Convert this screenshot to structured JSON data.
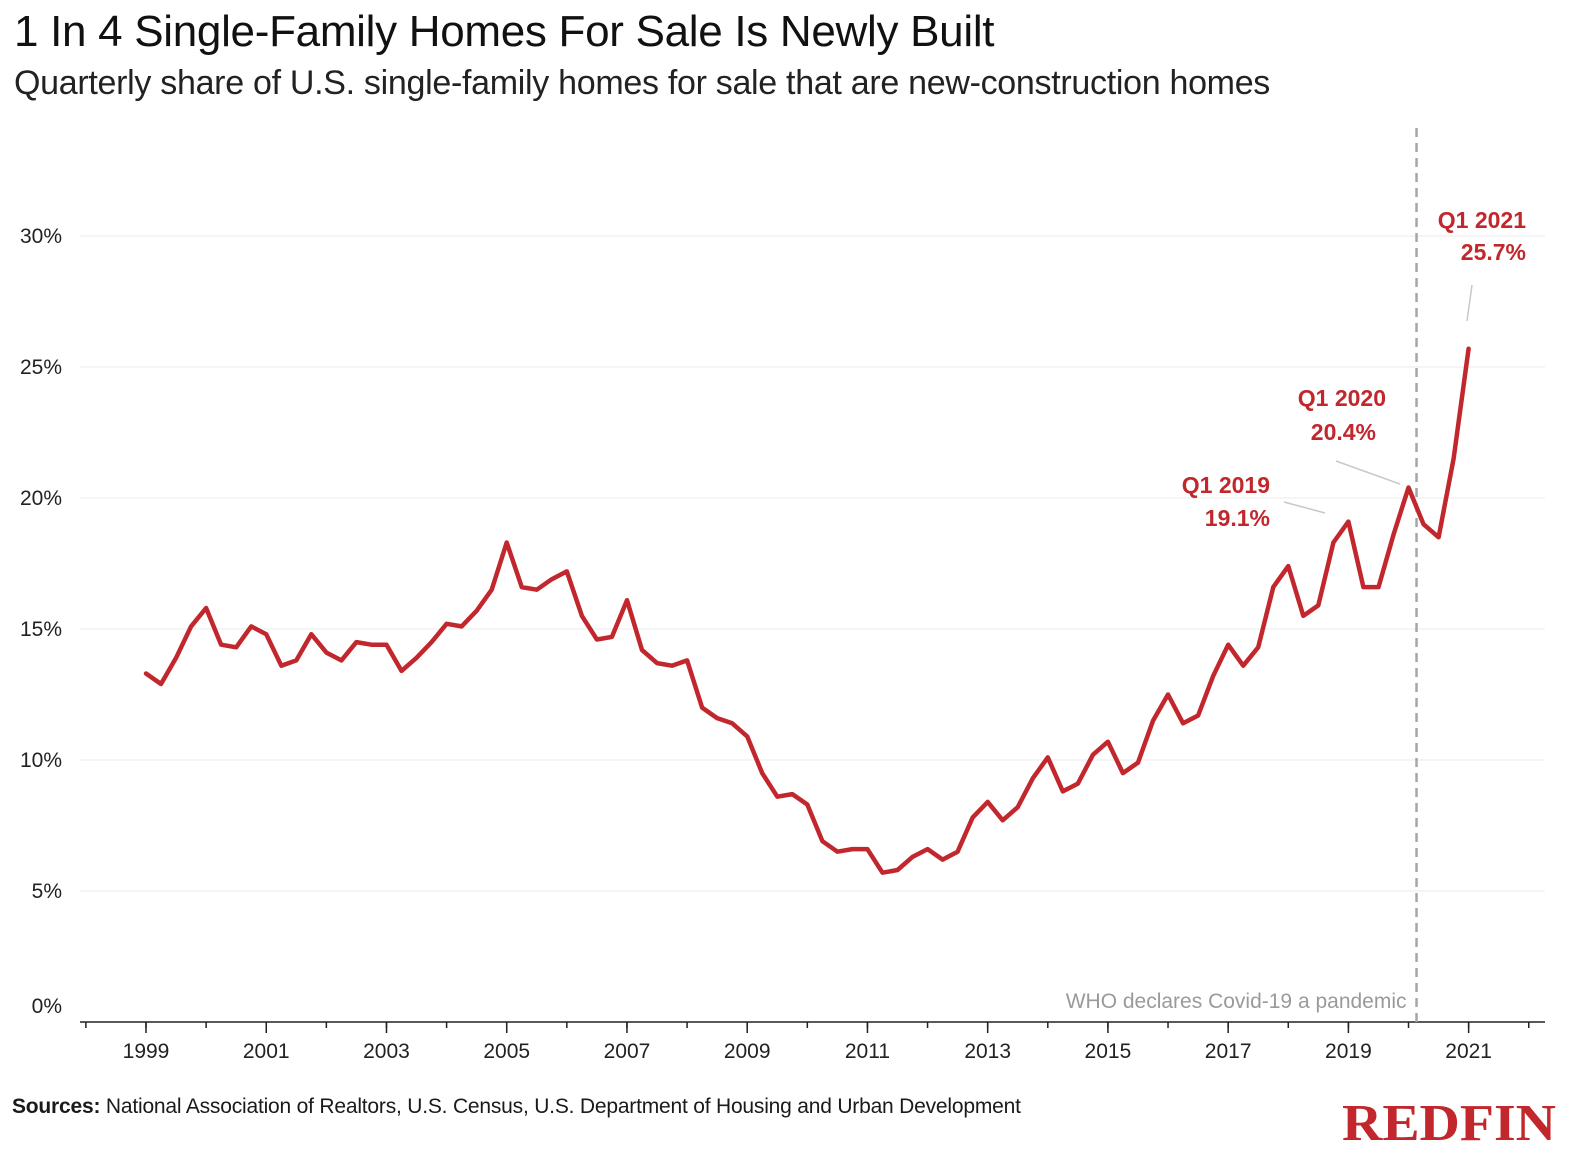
{
  "title": "1 In 4 Single-Family Homes For Sale Is Newly Built",
  "subtitle": "Quarterly share of U.S. single-family homes for sale that are new-construction homes",
  "sources": {
    "label": "Sources:",
    "text": "National Association of Realtors, U.S. Census, U.S. Department of Housing and Urban Development"
  },
  "logo": {
    "text": "REDFIN",
    "color": "#c1272d"
  },
  "chart_data": {
    "type": "line",
    "ylim": [
      0,
      30
    ],
    "y_ticks": [
      {
        "value": 0,
        "label": "0%"
      },
      {
        "value": 5,
        "label": "5%"
      },
      {
        "value": 10,
        "label": "10%"
      },
      {
        "value": 15,
        "label": "15%"
      },
      {
        "value": 20,
        "label": "20%"
      },
      {
        "value": 25,
        "label": "25%"
      },
      {
        "value": 30,
        "label": "30%"
      }
    ],
    "x_ticks": [
      "1999",
      "2001",
      "2003",
      "2005",
      "2007",
      "2009",
      "2011",
      "2013",
      "2015",
      "2017",
      "2019",
      "2021"
    ],
    "grid": true,
    "line_color": "#c1272d",
    "series": [
      {
        "values": [
          {
            "x": "Q1 1999",
            "y": 13.3
          },
          {
            "x": "Q2 1999",
            "y": 12.9
          },
          {
            "x": "Q3 1999",
            "y": 13.9
          },
          {
            "x": "Q4 1999",
            "y": 15.1
          },
          {
            "x": "Q1 2000",
            "y": 15.8
          },
          {
            "x": "Q2 2000",
            "y": 14.4
          },
          {
            "x": "Q3 2000",
            "y": 14.3
          },
          {
            "x": "Q4 2000",
            "y": 15.1
          },
          {
            "x": "Q1 2001",
            "y": 14.8
          },
          {
            "x": "Q2 2001",
            "y": 13.6
          },
          {
            "x": "Q3 2001",
            "y": 13.8
          },
          {
            "x": "Q4 2001",
            "y": 14.8
          },
          {
            "x": "Q1 2002",
            "y": 14.1
          },
          {
            "x": "Q2 2002",
            "y": 13.8
          },
          {
            "x": "Q3 2002",
            "y": 14.5
          },
          {
            "x": "Q4 2002",
            "y": 14.4
          },
          {
            "x": "Q1 2003",
            "y": 14.4
          },
          {
            "x": "Q2 2003",
            "y": 13.4
          },
          {
            "x": "Q3 2003",
            "y": 13.9
          },
          {
            "x": "Q4 2003",
            "y": 14.5
          },
          {
            "x": "Q1 2004",
            "y": 15.2
          },
          {
            "x": "Q2 2004",
            "y": 15.1
          },
          {
            "x": "Q3 2004",
            "y": 15.7
          },
          {
            "x": "Q4 2004",
            "y": 16.5
          },
          {
            "x": "Q1 2005",
            "y": 18.3
          },
          {
            "x": "Q2 2005",
            "y": 16.6
          },
          {
            "x": "Q3 2005",
            "y": 16.5
          },
          {
            "x": "Q4 2005",
            "y": 16.9
          },
          {
            "x": "Q1 2006",
            "y": 17.2
          },
          {
            "x": "Q2 2006",
            "y": 15.5
          },
          {
            "x": "Q3 2006",
            "y": 14.6
          },
          {
            "x": "Q4 2006",
            "y": 14.7
          },
          {
            "x": "Q1 2007",
            "y": 16.1
          },
          {
            "x": "Q2 2007",
            "y": 14.2
          },
          {
            "x": "Q3 2007",
            "y": 13.7
          },
          {
            "x": "Q4 2007",
            "y": 13.6
          },
          {
            "x": "Q1 2008",
            "y": 13.8
          },
          {
            "x": "Q2 2008",
            "y": 12.0
          },
          {
            "x": "Q3 2008",
            "y": 11.6
          },
          {
            "x": "Q4 2008",
            "y": 11.4
          },
          {
            "x": "Q1 2009",
            "y": 10.9
          },
          {
            "x": "Q2 2009",
            "y": 9.5
          },
          {
            "x": "Q3 2009",
            "y": 8.6
          },
          {
            "x": "Q4 2009",
            "y": 8.7
          },
          {
            "x": "Q1 2010",
            "y": 8.3
          },
          {
            "x": "Q2 2010",
            "y": 6.9
          },
          {
            "x": "Q3 2010",
            "y": 6.5
          },
          {
            "x": "Q4 2010",
            "y": 6.6
          },
          {
            "x": "Q1 2011",
            "y": 6.6
          },
          {
            "x": "Q2 2011",
            "y": 5.7
          },
          {
            "x": "Q3 2011",
            "y": 5.8
          },
          {
            "x": "Q4 2011",
            "y": 6.3
          },
          {
            "x": "Q1 2012",
            "y": 6.6
          },
          {
            "x": "Q2 2012",
            "y": 6.2
          },
          {
            "x": "Q3 2012",
            "y": 6.5
          },
          {
            "x": "Q4 2012",
            "y": 7.8
          },
          {
            "x": "Q1 2013",
            "y": 8.4
          },
          {
            "x": "Q2 2013",
            "y": 7.7
          },
          {
            "x": "Q3 2013",
            "y": 8.2
          },
          {
            "x": "Q4 2013",
            "y": 9.3
          },
          {
            "x": "Q1 2014",
            "y": 10.1
          },
          {
            "x": "Q2 2014",
            "y": 8.8
          },
          {
            "x": "Q3 2014",
            "y": 9.1
          },
          {
            "x": "Q4 2014",
            "y": 10.2
          },
          {
            "x": "Q1 2015",
            "y": 10.7
          },
          {
            "x": "Q2 2015",
            "y": 9.5
          },
          {
            "x": "Q3 2015",
            "y": 9.9
          },
          {
            "x": "Q4 2015",
            "y": 11.5
          },
          {
            "x": "Q1 2016",
            "y": 12.5
          },
          {
            "x": "Q2 2016",
            "y": 11.4
          },
          {
            "x": "Q3 2016",
            "y": 11.7
          },
          {
            "x": "Q4 2016",
            "y": 13.2
          },
          {
            "x": "Q1 2017",
            "y": 14.4
          },
          {
            "x": "Q2 2017",
            "y": 13.6
          },
          {
            "x": "Q3 2017",
            "y": 14.3
          },
          {
            "x": "Q4 2017",
            "y": 16.6
          },
          {
            "x": "Q1 2018",
            "y": 17.4
          },
          {
            "x": "Q2 2018",
            "y": 15.5
          },
          {
            "x": "Q3 2018",
            "y": 15.9
          },
          {
            "x": "Q4 2018",
            "y": 18.3
          },
          {
            "x": "Q1 2019",
            "y": 19.1
          },
          {
            "x": "Q2 2019",
            "y": 16.6
          },
          {
            "x": "Q3 2019",
            "y": 16.6
          },
          {
            "x": "Q4 2019",
            "y": 18.6
          },
          {
            "x": "Q1 2020",
            "y": 20.4
          },
          {
            "x": "Q2 2020",
            "y": 19.0
          },
          {
            "x": "Q3 2020",
            "y": 18.5
          },
          {
            "x": "Q4 2020",
            "y": 21.5
          },
          {
            "x": "Q1 2021",
            "y": 25.7
          }
        ]
      }
    ],
    "annotations": [
      {
        "label": "Q1 2019",
        "value_label": "19.1%",
        "x": "Q1 2019",
        "y": 19.1
      },
      {
        "label": "Q1 2020",
        "value_label": "20.4%",
        "x": "Q1 2020",
        "y": 20.4
      },
      {
        "label": "Q1 2021",
        "value_label": "25.7%",
        "x": "Q1 2021",
        "y": 25.7
      }
    ],
    "event_line": {
      "x": "Q1 2020",
      "label": "WHO declares Covid-19 a pandemic"
    }
  }
}
